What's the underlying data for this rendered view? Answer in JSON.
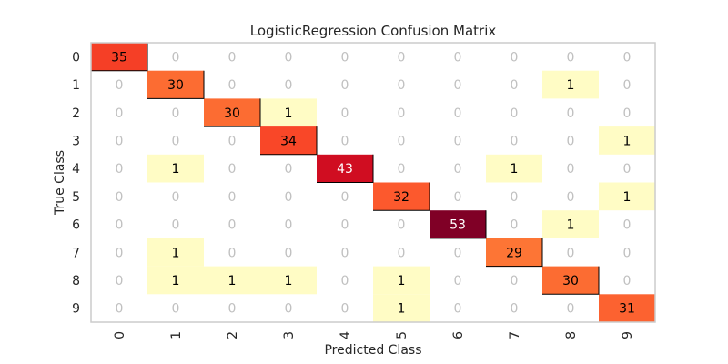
{
  "chart_data": {
    "type": "heatmap",
    "title": "LogisticRegression Confusion Matrix",
    "xlabel": "Predicted Class",
    "ylabel": "True Class",
    "x_tick_labels": [
      "0",
      "1",
      "2",
      "3",
      "4",
      "5",
      "6",
      "7",
      "8",
      "9"
    ],
    "y_tick_labels": [
      "0",
      "1",
      "2",
      "3",
      "4",
      "5",
      "6",
      "7",
      "8",
      "9"
    ],
    "matrix": [
      [
        35,
        0,
        0,
        0,
        0,
        0,
        0,
        0,
        0,
        0
      ],
      [
        0,
        30,
        0,
        0,
        0,
        0,
        0,
        0,
        1,
        0
      ],
      [
        0,
        0,
        30,
        1,
        0,
        0,
        0,
        0,
        0,
        0
      ],
      [
        0,
        0,
        0,
        34,
        0,
        0,
        0,
        0,
        0,
        1
      ],
      [
        0,
        1,
        0,
        0,
        43,
        0,
        0,
        1,
        0,
        0
      ],
      [
        0,
        0,
        0,
        0,
        0,
        32,
        0,
        0,
        0,
        1
      ],
      [
        0,
        0,
        0,
        0,
        0,
        0,
        53,
        0,
        1,
        0
      ],
      [
        0,
        1,
        0,
        0,
        0,
        0,
        0,
        29,
        0,
        0
      ],
      [
        0,
        1,
        1,
        1,
        0,
        1,
        0,
        0,
        30,
        0
      ],
      [
        0,
        0,
        0,
        0,
        0,
        1,
        0,
        0,
        0,
        31
      ]
    ],
    "colormap": "YlOrRd",
    "zero_cells": "blank",
    "grid": false
  }
}
